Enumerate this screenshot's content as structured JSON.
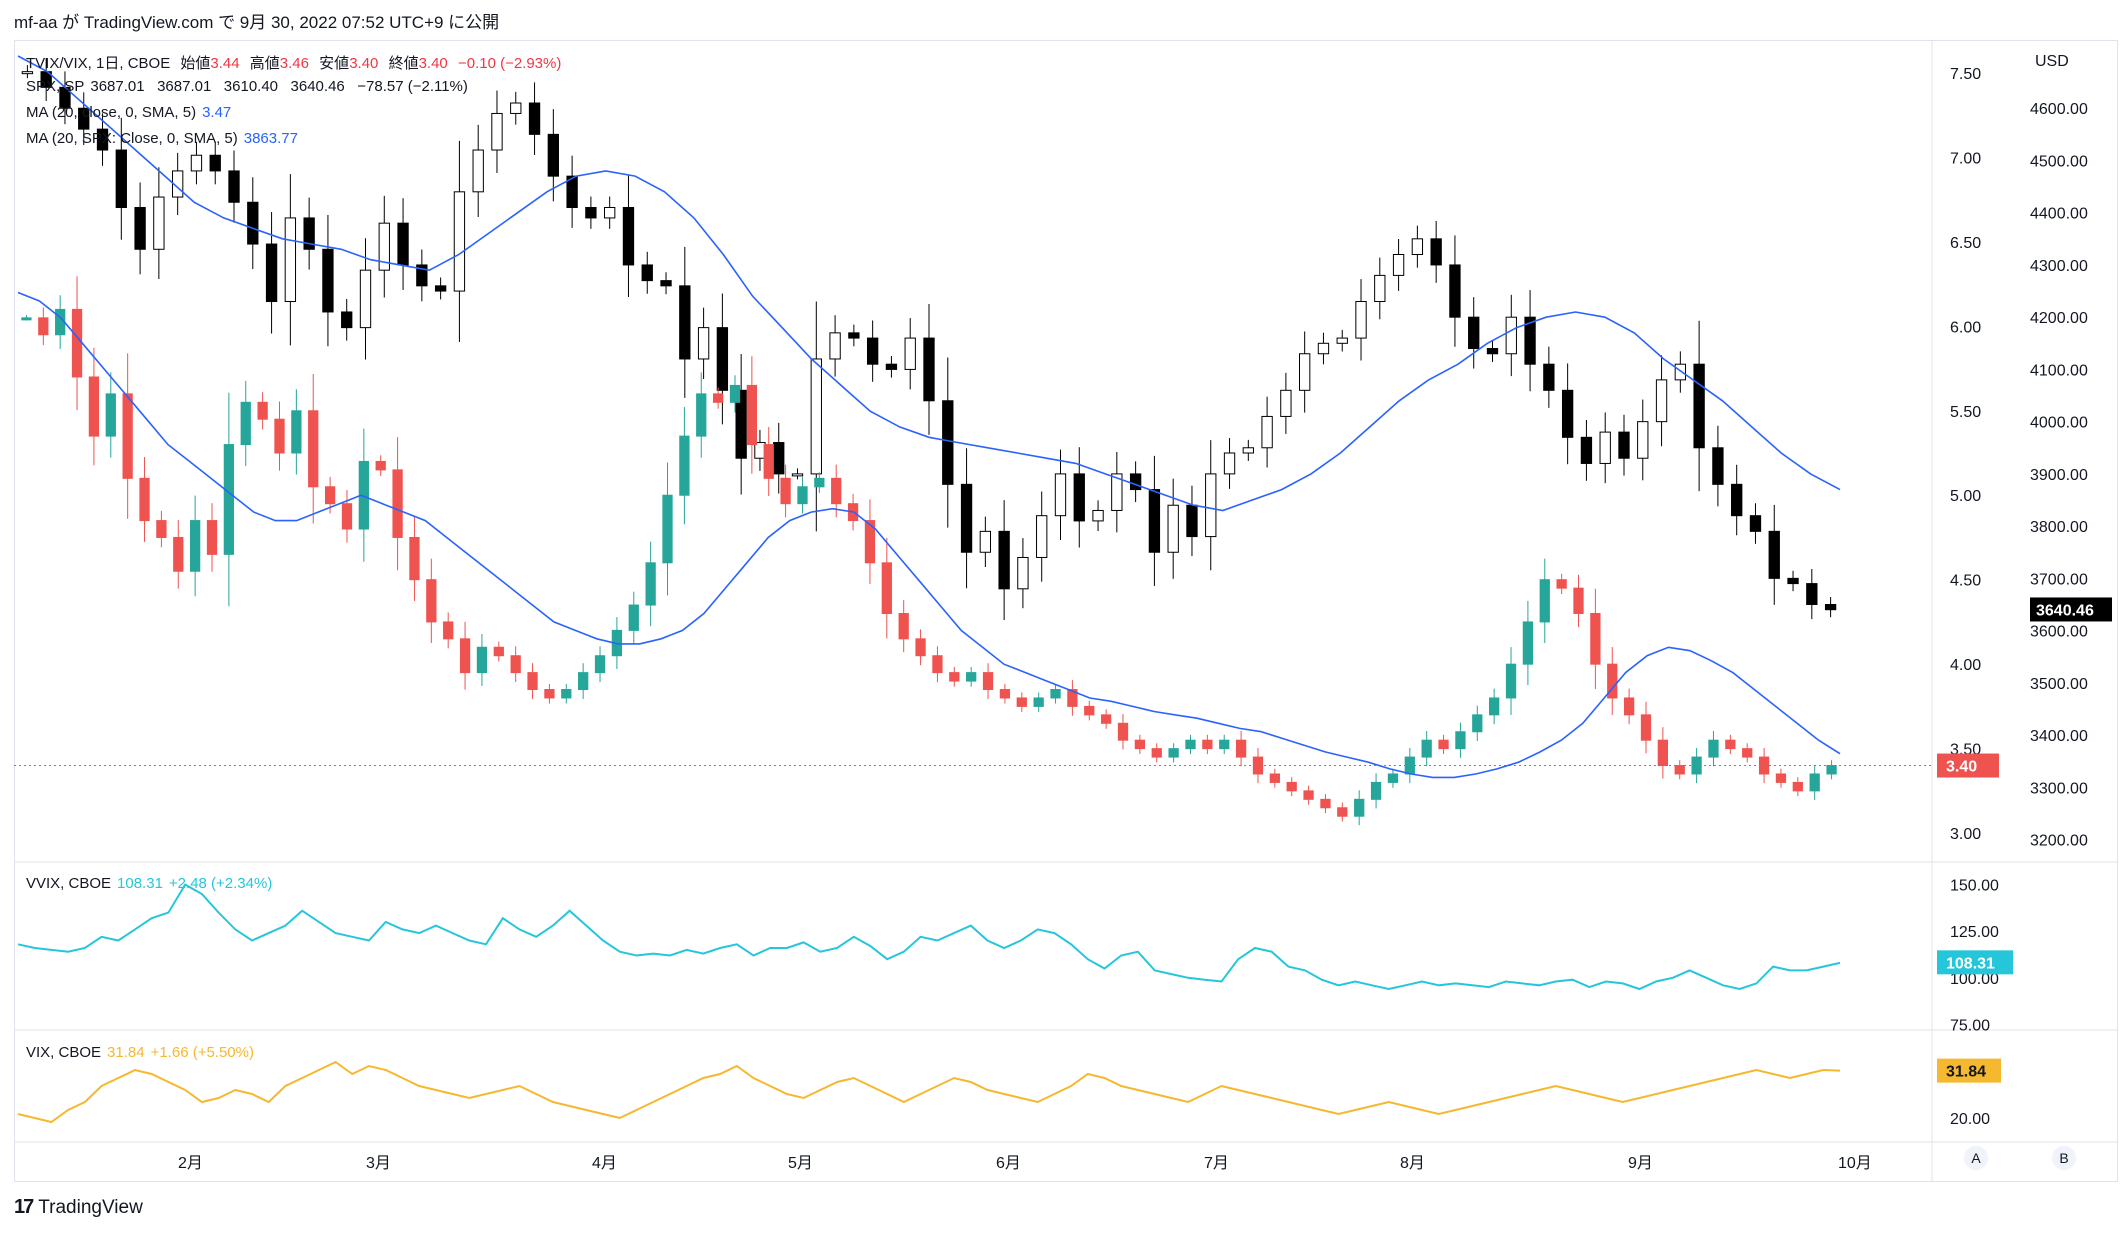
{
  "header": {
    "text": "mf-aa が TradingView.com で 9月 30, 2022 07:52 UTC+9 に公開"
  },
  "footer": {
    "brand": "TradingView",
    "logo_glyph": "17"
  },
  "buttons": {
    "auto": "A",
    "b": "B"
  },
  "legend": {
    "main": {
      "symbol": "TVIX/VIX, 1日, CBOE",
      "o_label": "始値",
      "o": "3.44",
      "h_label": "高値",
      "h": "3.46",
      "l_label": "安値",
      "l": "3.40",
      "c_label": "終値",
      "c": "3.40",
      "chg": "−0.10 (−2.93%)"
    },
    "spx": {
      "symbol": "SPX, SP",
      "values": "3687.01   3687.01   3610.40   3640.46   −78.57 (−2.11%)"
    },
    "ma1": {
      "label": "MA (20, close, 0, SMA, 5)",
      "value": "3.47"
    },
    "ma2": {
      "label": "MA (20, SPX: Close, 0, SMA, 5)",
      "value": "3863.77"
    },
    "vvix": {
      "label": "VVIX, CBOE",
      "value": "108.31",
      "chg": "+2.48 (+2.34%)"
    },
    "vix": {
      "label": "VIX, CBOE",
      "value": "31.84",
      "chg": "+1.66 (+5.50%)"
    }
  },
  "axes": {
    "right_ticks": [
      "7.50",
      "7.00",
      "6.50",
      "6.00",
      "5.50",
      "5.00",
      "4.50",
      "4.00",
      "3.50",
      "3.00"
    ],
    "usd_label": "USD",
    "usd_ticks": [
      "4600.00",
      "4500.00",
      "4400.00",
      "4300.00",
      "4200.00",
      "4100.00",
      "4000.00",
      "3900.00",
      "3800.00",
      "3700.00",
      "3600.00",
      "3500.00",
      "3400.00",
      "3300.00",
      "3200.00"
    ],
    "vvix_ticks": [
      "150.00",
      "125.00",
      "100.00",
      "75.00"
    ],
    "vix_ticks": [
      "20.00"
    ],
    "months": [
      "2月",
      "3月",
      "4月",
      "5月",
      "6月",
      "7月",
      "8月",
      "9月",
      "10月"
    ],
    "price_tag": "3.40",
    "spx_tag": "3640.46",
    "vvix_tag": "108.31",
    "vix_tag": "31.84"
  },
  "colors": {
    "up": "#26a69a",
    "down": "#ef5350",
    "spx": "#000000",
    "ma": "#2962ff",
    "vvix": "#26c6da",
    "vix": "#f5b82e",
    "grid": "#f0f3fa"
  },
  "chart_data": [
    {
      "type": "candlestick",
      "title": "TVIX/VIX, 1日, CBOE",
      "series": [
        {
          "name": "TVIX/VIX",
          "values": [
            6.05,
            5.95,
            6.1,
            5.7,
            5.35,
            5.6,
            5.1,
            4.85,
            4.75,
            4.55,
            4.85,
            4.65,
            5.3,
            5.55,
            5.45,
            5.25,
            5.5,
            5.05,
            4.95,
            4.8,
            5.2,
            5.15,
            4.75,
            4.5,
            4.25,
            4.15,
            3.95,
            4.1,
            4.05,
            3.95,
            3.85,
            3.8,
            3.85,
            3.95,
            4.05,
            4.2,
            4.35,
            4.6,
            5.0,
            5.35,
            5.6,
            5.55,
            5.65,
            5.3,
            5.1,
            4.95,
            5.05,
            5.1,
            4.95,
            4.85,
            4.6,
            4.3,
            4.15,
            4.05,
            3.95,
            3.9,
            3.95,
            3.85,
            3.8,
            3.75,
            3.8,
            3.85,
            3.75,
            3.7,
            3.65,
            3.55,
            3.5,
            3.45,
            3.5,
            3.55,
            3.5,
            3.55,
            3.45,
            3.35,
            3.3,
            3.25,
            3.2,
            3.15,
            3.1,
            3.2,
            3.3,
            3.35,
            3.45,
            3.55,
            3.5,
            3.6,
            3.7,
            3.8,
            4.0,
            4.25,
            4.5,
            4.45,
            4.3,
            4.0,
            3.8,
            3.7,
            3.55,
            3.4,
            3.35,
            3.45,
            3.55,
            3.5,
            3.45,
            3.35,
            3.3,
            3.25,
            3.35,
            3.4
          ]
        },
        {
          "name": "MA (20, close, 0, SMA, 5)",
          "values": [
            6.2,
            6.15,
            6.05,
            5.9,
            5.75,
            5.6,
            5.45,
            5.3,
            5.2,
            5.1,
            5.0,
            4.9,
            4.85,
            4.85,
            4.9,
            4.95,
            5.0,
            4.95,
            4.9,
            4.85,
            4.75,
            4.65,
            4.55,
            4.45,
            4.35,
            4.25,
            4.2,
            4.15,
            4.12,
            4.12,
            4.15,
            4.2,
            4.3,
            4.45,
            4.6,
            4.75,
            4.85,
            4.9,
            4.92,
            4.9,
            4.8,
            4.65,
            4.5,
            4.35,
            4.2,
            4.1,
            4.0,
            3.95,
            3.9,
            3.85,
            3.8,
            3.78,
            3.75,
            3.72,
            3.7,
            3.68,
            3.65,
            3.62,
            3.6,
            3.56,
            3.52,
            3.48,
            3.45,
            3.42,
            3.38,
            3.35,
            3.33,
            3.33,
            3.35,
            3.38,
            3.42,
            3.48,
            3.55,
            3.65,
            3.8,
            3.95,
            4.05,
            4.1,
            4.08,
            4.02,
            3.95,
            3.85,
            3.75,
            3.65,
            3.55,
            3.47
          ]
        }
      ],
      "ylim": [
        2.9,
        7.6
      ]
    },
    {
      "type": "candlestick",
      "title": "SPX, SP",
      "series": [
        {
          "name": "SPX",
          "values": [
            4670,
            4640,
            4600,
            4560,
            4520,
            4410,
            4330,
            4430,
            4480,
            4510,
            4480,
            4420,
            4340,
            4230,
            4390,
            4330,
            4210,
            4180,
            4290,
            4380,
            4300,
            4260,
            4250,
            4440,
            4520,
            4590,
            4610,
            4550,
            4470,
            4410,
            4390,
            4410,
            4300,
            4270,
            4260,
            4120,
            4180,
            4060,
            3930,
            3960,
            3900,
            3900,
            4120,
            4170,
            4160,
            4110,
            4100,
            4160,
            4040,
            3880,
            3750,
            3790,
            3680,
            3740,
            3820,
            3900,
            3810,
            3830,
            3900,
            3870,
            3750,
            3840,
            3780,
            3900,
            3940,
            3950,
            4010,
            4060,
            4130,
            4150,
            4160,
            4230,
            4280,
            4320,
            4350,
            4300,
            4200,
            4140,
            4130,
            4200,
            4110,
            4060,
            3970,
            3920,
            3980,
            3930,
            4000,
            4080,
            4110,
            3950,
            3880,
            3820,
            3790,
            3700,
            3690,
            3650,
            3640
          ]
        },
        {
          "name": "MA (20, SPX: Close, 0, SMA, 5)",
          "values": [
            4700,
            4670,
            4620,
            4570,
            4520,
            4470,
            4420,
            4390,
            4370,
            4350,
            4340,
            4330,
            4310,
            4300,
            4290,
            4320,
            4360,
            4400,
            4440,
            4470,
            4480,
            4470,
            4440,
            4390,
            4320,
            4240,
            4180,
            4120,
            4070,
            4020,
            3990,
            3970,
            3960,
            3950,
            3940,
            3930,
            3920,
            3900,
            3880,
            3860,
            3840,
            3830,
            3850,
            3870,
            3900,
            3940,
            3990,
            4040,
            4080,
            4110,
            4150,
            4180,
            4200,
            4210,
            4200,
            4170,
            4120,
            4080,
            4040,
            3990,
            3940,
            3900,
            3870
          ]
        }
      ],
      "ylim": [
        3180,
        4700
      ]
    },
    {
      "type": "line",
      "title": "VVIX, CBOE",
      "series": [
        {
          "name": "VVIX",
          "values": [
            118,
            116,
            115,
            114,
            116,
            122,
            120,
            126,
            132,
            135,
            150,
            145,
            135,
            126,
            120,
            124,
            128,
            136,
            130,
            124,
            122,
            120,
            130,
            126,
            124,
            128,
            124,
            120,
            118,
            132,
            126,
            122,
            128,
            136,
            128,
            120,
            114,
            112,
            113,
            112,
            115,
            113,
            116,
            118,
            112,
            116,
            116,
            119,
            114,
            116,
            122,
            117,
            110,
            114,
            122,
            120,
            124,
            128,
            120,
            116,
            120,
            126,
            124,
            118,
            110,
            105,
            112,
            114,
            104,
            102,
            100,
            99,
            98,
            110,
            116,
            114,
            106,
            104,
            99,
            96,
            98,
            96,
            94,
            96,
            98,
            96,
            97,
            96,
            95,
            98,
            97,
            96,
            98,
            99,
            95,
            98,
            97,
            94,
            98,
            100,
            104,
            100,
            96,
            94,
            97,
            106,
            104,
            104,
            106,
            108
          ]
        }
      ],
      "ylim": [
        72,
        160
      ]
    },
    {
      "type": "line",
      "title": "VIX, CBOE",
      "series": [
        {
          "name": "VIX",
          "values": [
            21,
            20,
            19,
            22,
            24,
            28,
            30,
            32,
            31,
            29,
            27,
            24,
            25,
            27,
            26,
            24,
            28,
            30,
            32,
            34,
            31,
            33,
            32,
            30,
            28,
            27,
            26,
            25,
            26,
            27,
            28,
            26,
            24,
            23,
            22,
            21,
            20,
            22,
            24,
            26,
            28,
            30,
            31,
            33,
            30,
            28,
            26,
            25,
            27,
            29,
            30,
            28,
            26,
            24,
            26,
            28,
            30,
            29,
            27,
            26,
            25,
            24,
            26,
            28,
            31,
            30,
            28,
            27,
            26,
            25,
            24,
            26,
            28,
            27,
            26,
            25,
            24,
            23,
            22,
            21,
            22,
            23,
            24,
            23,
            22,
            21,
            22,
            23,
            24,
            25,
            26,
            27,
            28,
            27,
            26,
            25,
            24,
            25,
            26,
            27,
            28,
            29,
            30,
            31,
            32,
            31,
            30,
            31,
            32,
            31.84
          ]
        }
      ],
      "ylim": [
        15,
        40
      ]
    }
  ]
}
